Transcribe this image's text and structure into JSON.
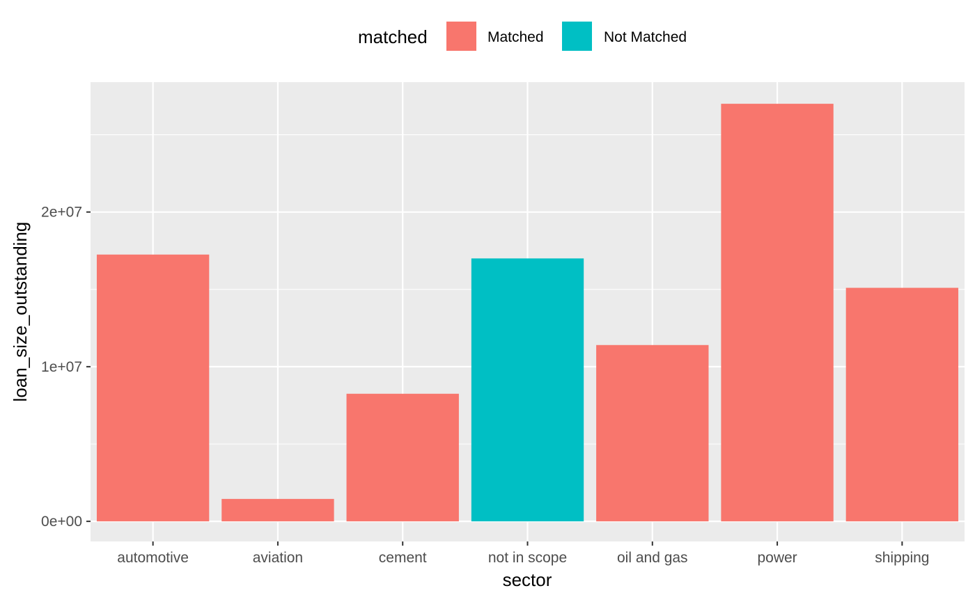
{
  "chart_data": {
    "type": "bar",
    "xlabel": "sector",
    "ylabel": "loan_size_outstanding",
    "categories": [
      "automotive",
      "aviation",
      "cement",
      "not in scope",
      "oil and gas",
      "power",
      "shipping"
    ],
    "values": [
      17250000,
      1450000,
      8250000,
      17000000,
      11400000,
      27000000,
      15100000
    ],
    "groups": [
      "Matched",
      "Matched",
      "Matched",
      "Not Matched",
      "Matched",
      "Matched",
      "Matched"
    ],
    "ylim": [
      -1300000,
      28400000
    ],
    "y_ticks": [
      0,
      10000000,
      20000000
    ],
    "y_tick_labels": [
      "0e+00",
      "1e+07",
      "2e+07"
    ],
    "legend": {
      "title": "matched",
      "position": "top",
      "items": [
        {
          "label": "Matched",
          "color": "#F8766D"
        },
        {
          "label": "Not Matched",
          "color": "#00BFC4"
        }
      ]
    },
    "grid": true,
    "panel_color": "#EBEBEB",
    "grid_color": "#FFFFFF"
  }
}
